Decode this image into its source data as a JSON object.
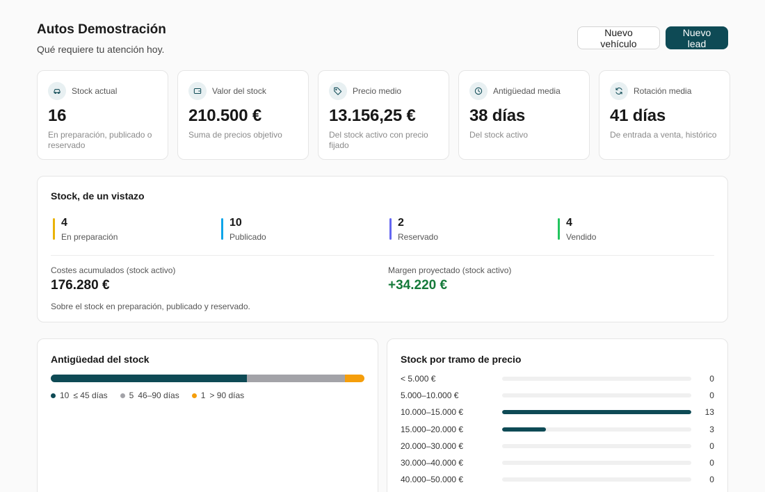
{
  "header": {
    "title": "Autos Demostración",
    "subtitle": "Qué requiere tu atención hoy.",
    "btn_new_vehicle": "Nuevo vehículo",
    "btn_new_lead": "Nuevo lead"
  },
  "kpis": [
    {
      "icon": "car-icon",
      "label": "Stock actual",
      "value": "16",
      "desc": "En preparación, publicado o reservado"
    },
    {
      "icon": "wallet-icon",
      "label": "Valor del stock",
      "value": "210.500 €",
      "desc": "Suma de precios objetivo"
    },
    {
      "icon": "tag-icon",
      "label": "Precio medio",
      "value": "13.156,25 €",
      "desc": "Del stock activo con precio fijado"
    },
    {
      "icon": "clock-icon",
      "label": "Antigüedad media",
      "value": "38 días",
      "desc": "Del stock activo"
    },
    {
      "icon": "refresh-icon",
      "label": "Rotación media",
      "value": "41 días",
      "desc": "De entrada a venta, histórico"
    }
  ],
  "overview": {
    "title": "Stock, de un vistazo",
    "states": [
      {
        "count": "4",
        "label": "En preparación",
        "color": "#eab308"
      },
      {
        "count": "10",
        "label": "Publicado",
        "color": "#0ea5e9"
      },
      {
        "count": "2",
        "label": "Reservado",
        "color": "#6366f1"
      },
      {
        "count": "4",
        "label": "Vendido",
        "color": "#22c55e"
      }
    ],
    "costs_label": "Costes acumulados (stock activo)",
    "costs_value": "176.280 €",
    "costs_note": "Sobre el stock en preparación, publicado y reservado.",
    "margin_label": "Margen proyectado (stock activo)",
    "margin_value": "+34.220 €"
  },
  "age": {
    "title": "Antigüedad del stock",
    "segments": [
      {
        "count": "10",
        "label": "≤ 45 días",
        "color": "#0e4a55",
        "value": 10
      },
      {
        "count": "5",
        "label": "46–90 días",
        "color": "#a3a3a8",
        "value": 5
      },
      {
        "count": "1",
        "label": "> 90 días",
        "color": "#f59e0b",
        "value": 1
      }
    ]
  },
  "price": {
    "title": "Stock por tramo de precio",
    "max": 13,
    "rows": [
      {
        "label": "< 5.000 €",
        "count": "0",
        "value": 0
      },
      {
        "label": "5.000–10.000 €",
        "count": "0",
        "value": 0
      },
      {
        "label": "10.000–15.000 €",
        "count": "13",
        "value": 13
      },
      {
        "label": "15.000–20.000 €",
        "count": "3",
        "value": 3
      },
      {
        "label": "20.000–30.000 €",
        "count": "0",
        "value": 0
      },
      {
        "label": "30.000–40.000 €",
        "count": "0",
        "value": 0
      },
      {
        "label": "40.000–50.000 €",
        "count": "0",
        "value": 0
      }
    ]
  },
  "colors": {
    "brand": "#0e4a55",
    "positive": "#157a3a"
  }
}
